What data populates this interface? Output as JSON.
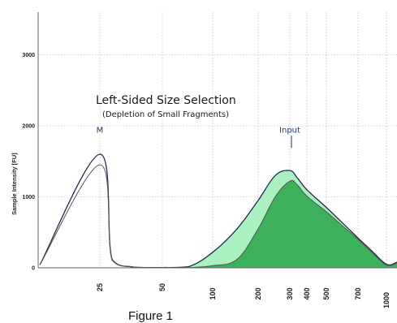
{
  "chart_data": {
    "type": "area",
    "title": "Left-Sided Size Selection",
    "subtitle": "(Depletion of Small Fragments)",
    "ylabel": "Sample Intensity [FU]",
    "xlabel": "",
    "caption": "Figure 1",
    "ylim": [
      0,
      3600
    ],
    "y_ticks": [
      0,
      1000,
      2000,
      3000
    ],
    "x_ticks": [
      "25",
      "50",
      "100",
      "200",
      "300",
      "400",
      "500",
      "700",
      "1000"
    ],
    "grid": true,
    "colors": {
      "input_fill": "#aaf0c0",
      "selected_fill": "#3cb05a",
      "input_line": "#1f2a4d",
      "selected_line": "#555555",
      "grid": "#c8c8c8"
    },
    "annotations": [
      {
        "text": "M",
        "x": "25",
        "y": 1700
      },
      {
        "text": "Input",
        "x": "300",
        "y": 1700
      }
    ],
    "x": [
      "20",
      "25",
      "30",
      "40",
      "50",
      "70",
      "100",
      "150",
      "200",
      "250",
      "300",
      "350",
      "400",
      "500",
      "600",
      "700",
      "800",
      "1000",
      "1100"
    ],
    "series": [
      {
        "values": [
          40,
          1600,
          120,
          10,
          5,
          15,
          220,
          550,
          950,
          1300,
          1370,
          1270,
          1100,
          850,
          620,
          420,
          260,
          50,
          80
        ]
      },
      {
        "values": [
          40,
          1450,
          110,
          10,
          5,
          5,
          30,
          120,
          550,
          1000,
          1220,
          1170,
          1010,
          790,
          580,
          400,
          240,
          40,
          70
        ]
      }
    ]
  }
}
